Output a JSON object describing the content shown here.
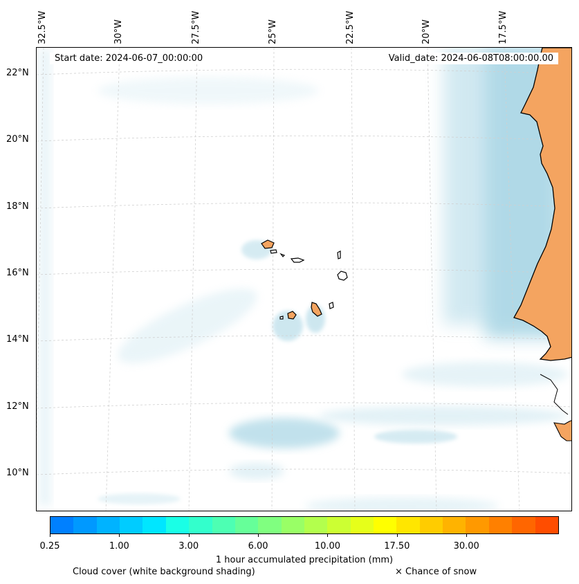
{
  "map": {
    "lon_labels": [
      "32.5°W",
      "30°W",
      "27.5°W",
      "25°W",
      "22.5°W",
      "20°W",
      "17.5°W"
    ],
    "lat_labels": [
      "22°N",
      "20°N",
      "18°N",
      "16°N",
      "14°N",
      "12°N",
      "10°N"
    ],
    "start_date": "Start date: 2024-06-07_00:00:00",
    "valid_date": "Valid_date: 2024-06-08T08:00:00.00",
    "colors": {
      "land": "#f4a460",
      "cloud": "#add8e6",
      "coast": "#000000",
      "grid": "#d0d0d0"
    }
  },
  "colorbar": {
    "colors": [
      "#0080ff",
      "#0099ff",
      "#00b3ff",
      "#00ccff",
      "#00e6ff",
      "#1affe6",
      "#33ffcc",
      "#4dffb3",
      "#66ff99",
      "#80ff80",
      "#99ff66",
      "#b3ff4d",
      "#ccff33",
      "#e6ff1a",
      "#ffff00",
      "#ffe600",
      "#ffcc00",
      "#ffb300",
      "#ff9900",
      "#ff8000",
      "#ff6600",
      "#ff4d00"
    ],
    "tick_labels": [
      "0.25",
      "1.00",
      "3.00",
      "6.00",
      "10.00",
      "17.50",
      "30.00"
    ],
    "label": "1 hour accumulated precipitation (mm)"
  },
  "legend": {
    "cloud_cover": "Cloud cover (white background shading)",
    "snow": "× Chance of snow"
  }
}
